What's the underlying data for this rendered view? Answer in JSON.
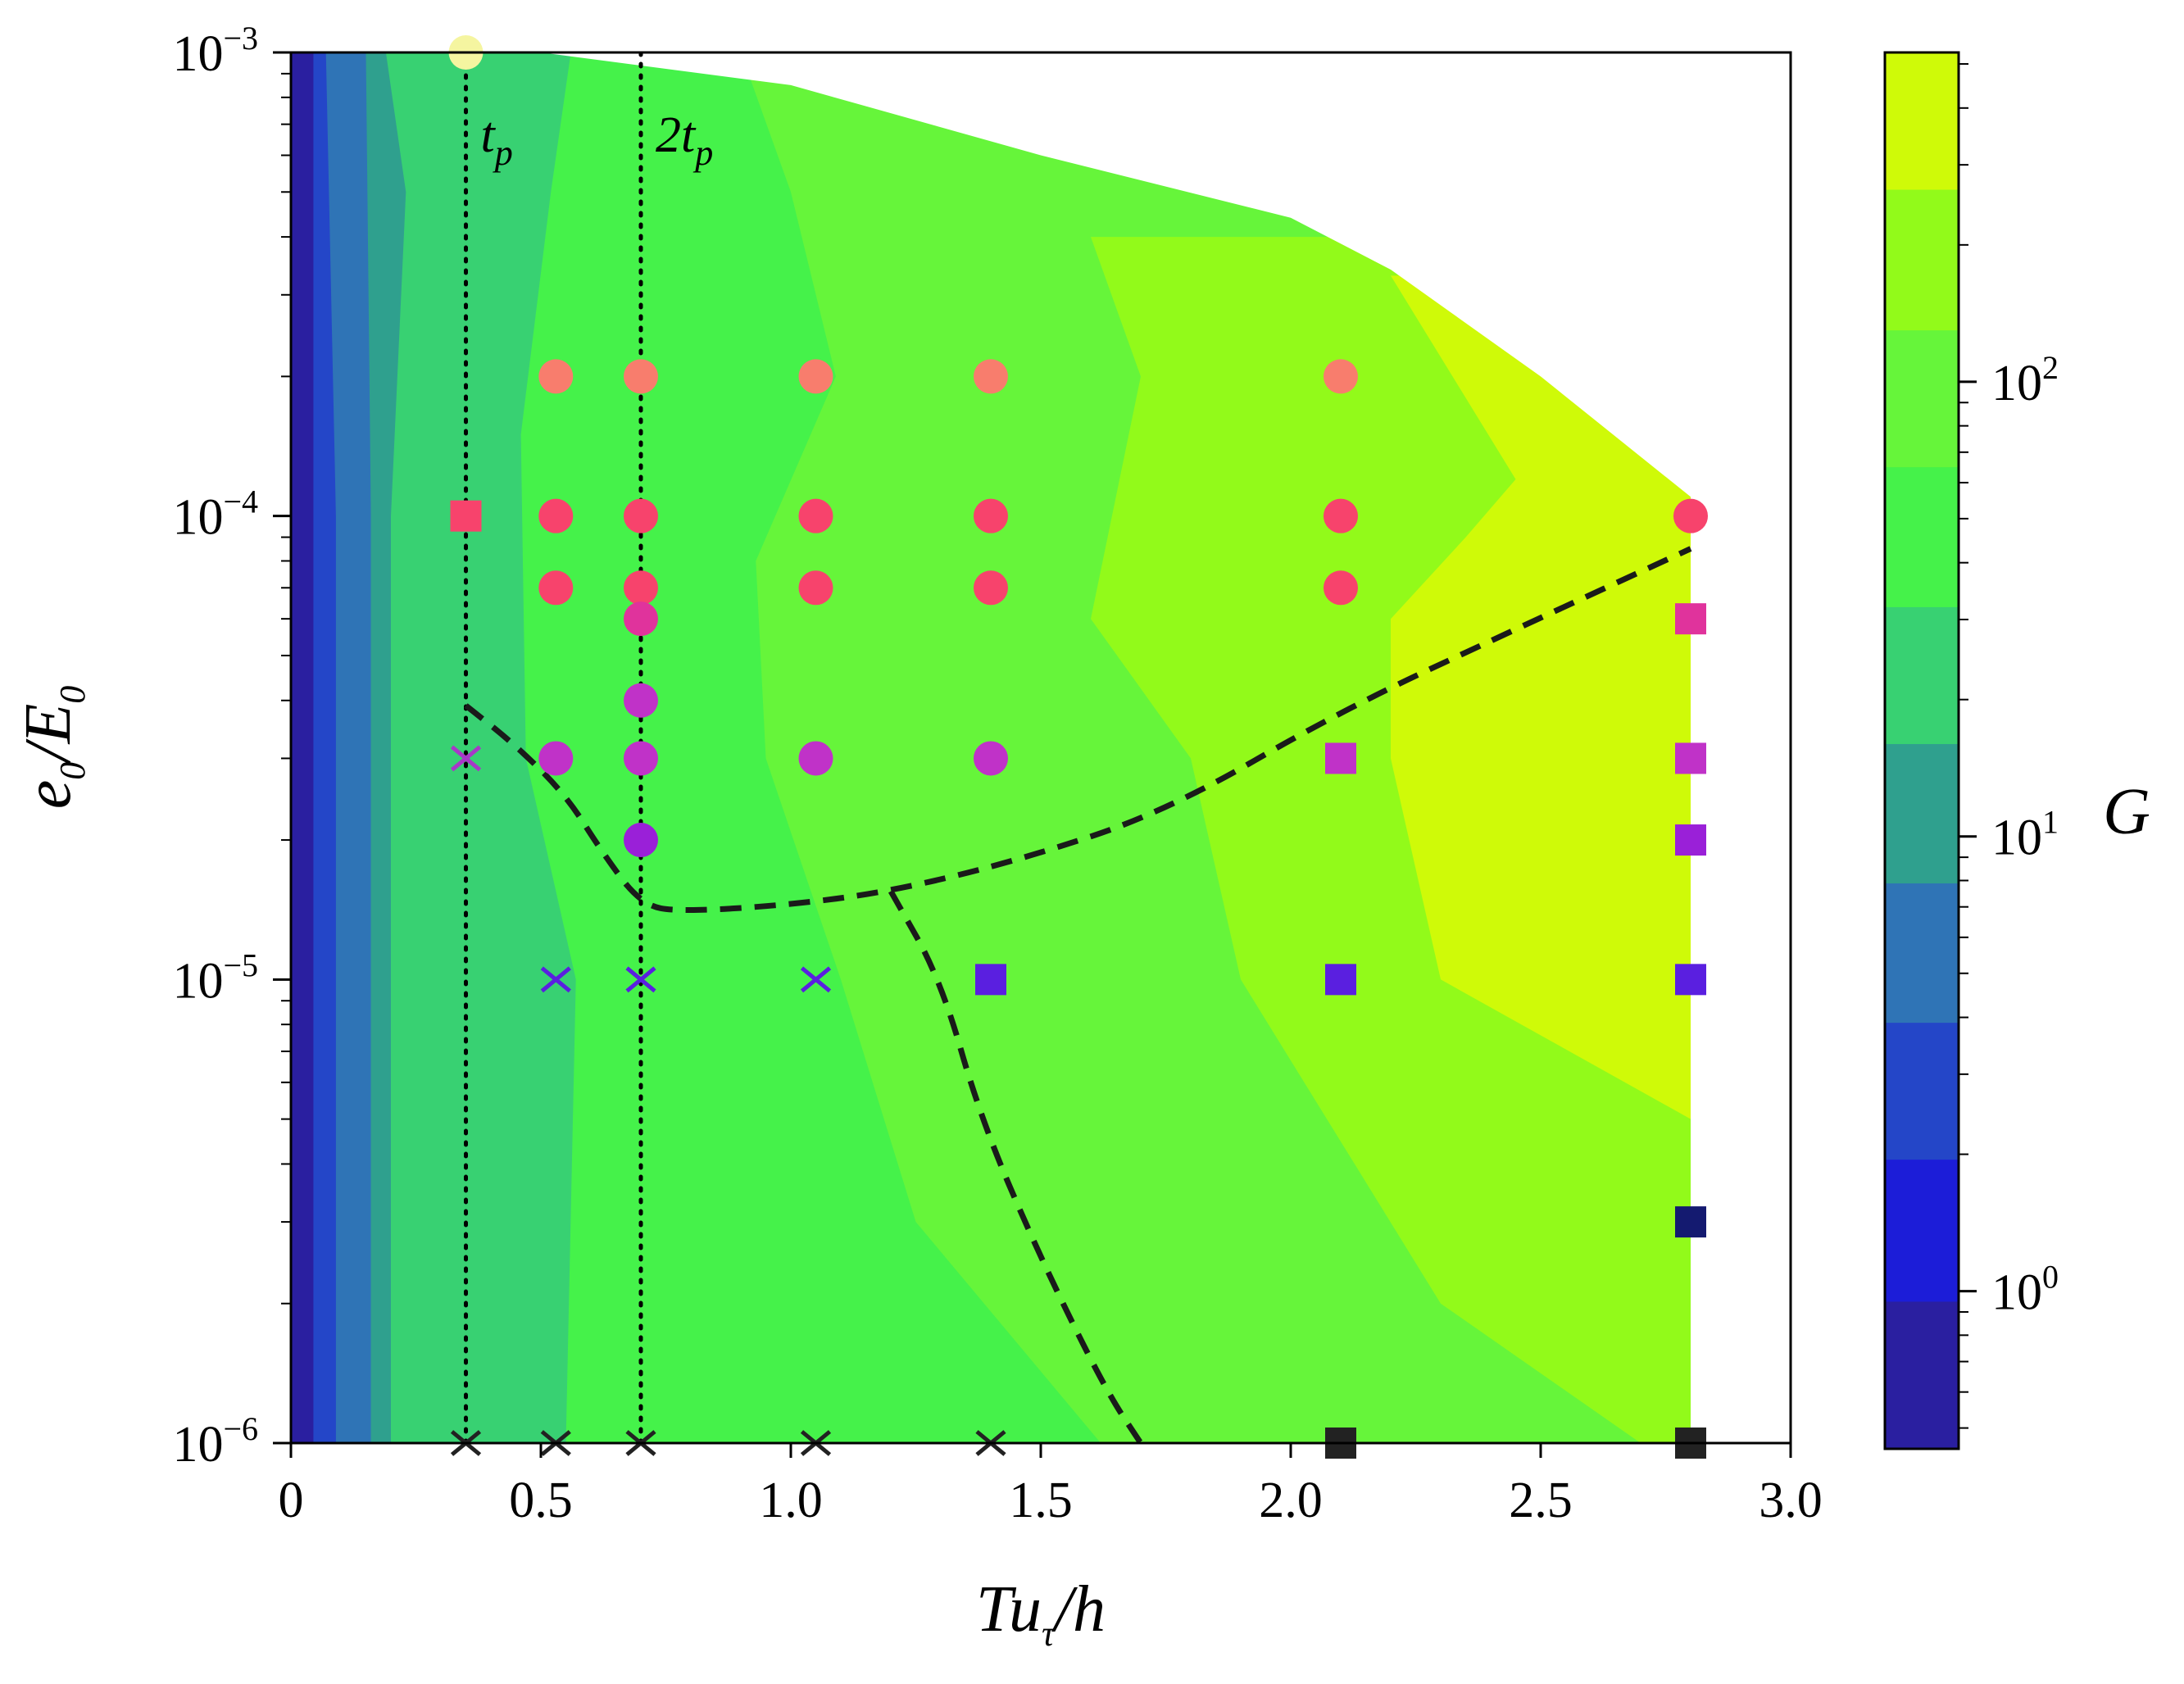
{
  "chart_data": {
    "type": "heatmap",
    "xlabel": {
      "base": "Tu",
      "sub": "τ",
      "tail": "/h"
    },
    "ylabel": {
      "base1": "e",
      "sub1": "0",
      "mid": "/E",
      "sub2": "0"
    },
    "colorbar_label": "G",
    "x_ticks": [
      "0",
      "0.5",
      "1.0",
      "1.5",
      "2.0",
      "2.5",
      "3.0"
    ],
    "x_tick_values": [
      0,
      0.5,
      1.0,
      1.5,
      2.0,
      2.5,
      3.0
    ],
    "xlim": [
      0,
      3.0
    ],
    "y_scale": "log",
    "ylim": [
      1e-06,
      0.001
    ],
    "y_ticks": [
      {
        "base": "10",
        "exp": "−6",
        "value": 1e-06
      },
      {
        "base": "10",
        "exp": "−5",
        "value": 1e-05
      },
      {
        "base": "10",
        "exp": "−4",
        "value": 0.0001
      },
      {
        "base": "10",
        "exp": "−3",
        "value": 0.001
      }
    ],
    "colorbar_scale": "log",
    "colorbar_ticks": [
      {
        "base": "10",
        "exp": "0",
        "value": 1
      },
      {
        "base": "10",
        "exp": "1",
        "value": 10
      },
      {
        "base": "10",
        "exp": "2",
        "value": 100
      }
    ],
    "colorbar_levels": [
      0.45,
      0.95,
      1.95,
      3.9,
      7.9,
      16,
      32,
      65,
      130,
      265,
      530
    ],
    "colorbar_colors": [
      "#2a1fa0",
      "#1c1dd8",
      "#2446c8",
      "#2f74b6",
      "#2fa08e",
      "#38d172",
      "#45f24a",
      "#66f53a",
      "#92fa1a",
      "#cffa08"
    ],
    "vertical_lines": [
      {
        "label": "t",
        "sub": "p",
        "x": 0.35
      },
      {
        "label": "2t",
        "sub": "p",
        "x": 0.7
      }
    ],
    "contour_bands": [
      {
        "color": "#2a1fa0",
        "boundary": [
          [
            0.0,
            1e-06
          ],
          [
            0.0,
            0.001
          ]
        ]
      },
      {
        "color": "#2446c8",
        "boundary": [
          [
            0.045,
            1e-06
          ],
          [
            0.045,
            0.001
          ]
        ]
      },
      {
        "color": "#2f74b6",
        "boundary": [
          [
            0.09,
            1e-06
          ],
          [
            0.09,
            0.0001
          ],
          [
            0.07,
            0.001
          ]
        ]
      },
      {
        "color": "#2fa08e",
        "boundary": [
          [
            0.16,
            1e-06
          ],
          [
            0.16,
            0.0001
          ],
          [
            0.15,
            0.001
          ]
        ]
      },
      {
        "color": "#38d172",
        "boundary": [
          [
            0.2,
            1e-06
          ],
          [
            0.2,
            0.0001
          ],
          [
            0.23,
            0.0005
          ],
          [
            0.19,
            0.001
          ]
        ]
      },
      {
        "color": "#45f24a",
        "boundary": [
          [
            0.55,
            1e-06
          ],
          [
            0.57,
            1e-05
          ],
          [
            0.47,
            3e-05
          ],
          [
            0.46,
            0.00015
          ],
          [
            0.52,
            0.0005
          ],
          [
            0.56,
            0.001
          ]
        ]
      },
      {
        "color": "#66f53a",
        "boundary": [
          [
            1.62,
            1e-06
          ],
          [
            1.25,
            3e-06
          ],
          [
            1.1,
            1e-05
          ],
          [
            0.95,
            3e-05
          ],
          [
            0.93,
            8e-05
          ],
          [
            1.09,
            0.0002
          ],
          [
            1.0,
            0.0005
          ],
          [
            0.9,
            0.001
          ]
        ]
      },
      {
        "color": "#92fa1a",
        "boundary": [
          [
            2.7,
            1e-06
          ],
          [
            2.3,
            2e-06
          ],
          [
            1.9,
            1e-05
          ],
          [
            1.8,
            3e-05
          ],
          [
            1.6,
            6e-05
          ],
          [
            1.7,
            0.0002
          ],
          [
            1.6,
            0.0004
          ]
        ]
      },
      {
        "color": "#cffa08",
        "boundary": [
          [
            2.8,
            5e-06
          ],
          [
            2.3,
            1e-05
          ],
          [
            2.2,
            3e-05
          ],
          [
            2.2,
            6e-05
          ],
          [
            2.35,
            9e-05
          ],
          [
            2.45,
            0.00012
          ],
          [
            2.2,
            0.00033
          ]
        ]
      }
    ],
    "data_region_top_edge": [
      [
        0.0,
        0.001
      ],
      [
        0.5,
        0.001
      ],
      [
        1.0,
        0.00085
      ],
      [
        1.5,
        0.0006
      ],
      [
        2.0,
        0.00044
      ],
      [
        2.2,
        0.00034
      ],
      [
        2.5,
        0.0002
      ],
      [
        2.8,
        0.00011
      ]
    ],
    "boundary_curves": [
      {
        "style": "dashed",
        "points": [
          [
            0.35,
            3.9e-05
          ],
          [
            0.45,
            3.2e-05
          ],
          [
            0.55,
            2.5e-05
          ],
          [
            0.62,
            1.9e-05
          ],
          [
            0.7,
            1.45e-05
          ],
          [
            0.78,
            1.4e-05
          ],
          [
            1.0,
            1.45e-05
          ],
          [
            1.2,
            1.55e-05
          ],
          [
            1.45,
            1.8e-05
          ],
          [
            1.75,
            2.3e-05
          ],
          [
            2.1,
            3.8e-05
          ],
          [
            2.45,
            5.7e-05
          ],
          [
            2.8,
            8.5e-05
          ]
        ]
      },
      {
        "style": "dashed",
        "points": [
          [
            1.2,
            1.55e-05
          ],
          [
            1.3,
            1e-05
          ],
          [
            1.38,
            5e-06
          ],
          [
            1.5,
            2.5e-06
          ],
          [
            1.63,
            1.3e-06
          ],
          [
            1.7,
            1e-06
          ]
        ]
      }
    ],
    "series": [
      {
        "marker": "circle",
        "color": "#f87d6d",
        "points": [
          [
            0.53,
            0.0002
          ],
          [
            0.7,
            0.0002
          ],
          [
            1.05,
            0.0002
          ],
          [
            1.4,
            0.0002
          ],
          [
            2.1,
            0.0002
          ]
        ]
      },
      {
        "marker": "circle",
        "color": "#f7436c",
        "points": [
          [
            0.53,
            0.0001
          ],
          [
            0.7,
            0.0001
          ],
          [
            1.05,
            0.0001
          ],
          [
            1.4,
            0.0001
          ],
          [
            2.1,
            0.0001
          ],
          [
            2.8,
            0.0001
          ],
          [
            0.53,
            7e-05
          ],
          [
            0.7,
            7e-05
          ],
          [
            1.05,
            7e-05
          ],
          [
            1.4,
            7e-05
          ],
          [
            2.1,
            7e-05
          ]
        ]
      },
      {
        "marker": "square",
        "color": "#f7436c",
        "points": [
          [
            0.35,
            0.0001
          ]
        ]
      },
      {
        "marker": "circle",
        "color": "#e0339c",
        "points": [
          [
            0.7,
            6e-05
          ]
        ]
      },
      {
        "marker": "square",
        "color": "#e0339c",
        "points": [
          [
            2.8,
            6e-05
          ]
        ]
      },
      {
        "marker": "circle",
        "color": "#c032c8",
        "points": [
          [
            0.7,
            4e-05
          ],
          [
            0.53,
            3e-05
          ],
          [
            0.7,
            3e-05
          ],
          [
            1.05,
            3e-05
          ],
          [
            1.4,
            3e-05
          ]
        ]
      },
      {
        "marker": "square",
        "color": "#c032c8",
        "points": [
          [
            2.1,
            3e-05
          ],
          [
            2.8,
            3e-05
          ]
        ]
      },
      {
        "marker": "circle",
        "color": "#9a20d8",
        "points": [
          [
            0.7,
            2e-05
          ]
        ]
      },
      {
        "marker": "square",
        "color": "#9a20d8",
        "points": [
          [
            2.8,
            2e-05
          ]
        ]
      },
      {
        "marker": "cross",
        "color": "#a838c8",
        "points": [
          [
            0.35,
            3e-05
          ]
        ]
      },
      {
        "marker": "cross",
        "color": "#5a1fe0",
        "points": [
          [
            0.53,
            1e-05
          ],
          [
            0.7,
            1e-05
          ],
          [
            1.05,
            1e-05
          ]
        ]
      },
      {
        "marker": "square",
        "color": "#5a1fe0",
        "points": [
          [
            1.4,
            1e-05
          ],
          [
            2.1,
            1e-05
          ],
          [
            2.8,
            1e-05
          ]
        ]
      },
      {
        "marker": "square",
        "color": "#141a70",
        "points": [
          [
            2.8,
            3e-06
          ]
        ]
      },
      {
        "marker": "cross",
        "color": "#222222",
        "points": [
          [
            0.35,
            1e-06
          ],
          [
            0.53,
            1e-06
          ],
          [
            0.7,
            1e-06
          ],
          [
            1.05,
            1e-06
          ],
          [
            1.4,
            1e-06
          ]
        ]
      },
      {
        "marker": "square",
        "color": "#222222",
        "points": [
          [
            2.1,
            1e-06
          ],
          [
            2.8,
            1e-06
          ]
        ]
      },
      {
        "marker": "circle",
        "color": "#f5f5a0",
        "points": [
          [
            0.35,
            0.001
          ]
        ]
      }
    ]
  }
}
